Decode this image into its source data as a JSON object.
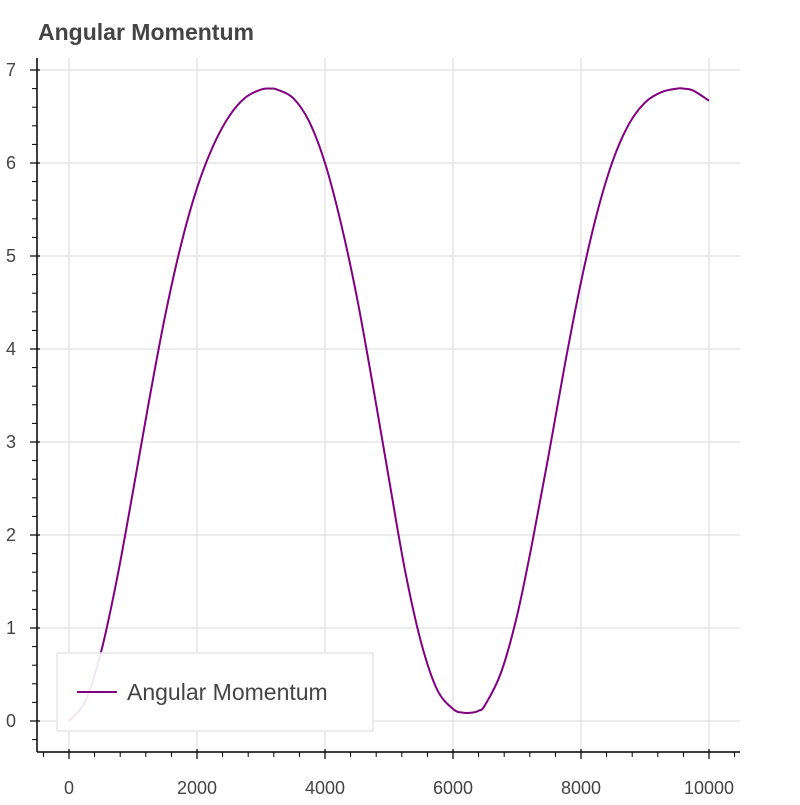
{
  "chart_data": {
    "type": "line",
    "title": "Angular Momentum",
    "xlabel": "",
    "ylabel": "",
    "xlim": [
      -500,
      10500
    ],
    "ylim": [
      -0.35,
      7.1
    ],
    "x_ticks": [
      0,
      2000,
      4000,
      6000,
      8000,
      10000
    ],
    "x_tick_labels": [
      "0",
      "2000",
      "4000",
      "6000",
      "8000",
      "10000"
    ],
    "y_ticks": [
      0,
      1,
      2,
      3,
      4,
      5,
      6,
      7
    ],
    "y_tick_labels": [
      "0",
      "1",
      "2",
      "3",
      "4",
      "5",
      "6",
      "7"
    ],
    "grid": true,
    "legend": "bottom-left",
    "series": [
      {
        "name": "Angular Momentum",
        "color": "#800080",
        "x": [
          0,
          250,
          500,
          750,
          1000,
          1250,
          1500,
          1750,
          2000,
          2250,
          2500,
          2750,
          3000,
          3150,
          3250,
          3500,
          3750,
          4000,
          4250,
          4500,
          4750,
          5000,
          5250,
          5500,
          5750,
          6000,
          6150,
          6300,
          6400,
          6500,
          6750,
          7000,
          7250,
          7500,
          7750,
          8000,
          8250,
          8500,
          8750,
          9000,
          9250,
          9500,
          9600,
          9750,
          10000
        ],
        "y": [
          0.0,
          0.21,
          0.74,
          1.53,
          2.47,
          3.44,
          4.35,
          5.12,
          5.73,
          6.18,
          6.5,
          6.7,
          6.79,
          6.8,
          6.79,
          6.7,
          6.45,
          6.0,
          5.35,
          4.55,
          3.6,
          2.6,
          1.62,
          0.85,
          0.34,
          0.13,
          0.09,
          0.09,
          0.11,
          0.17,
          0.52,
          1.13,
          1.96,
          2.88,
          3.84,
          4.72,
          5.46,
          6.03,
          6.42,
          6.65,
          6.76,
          6.8,
          6.8,
          6.78,
          6.67
        ]
      }
    ]
  }
}
